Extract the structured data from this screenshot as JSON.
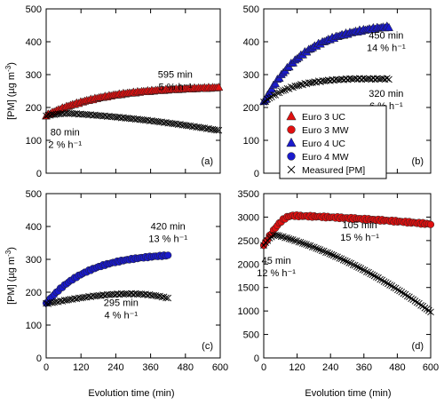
{
  "figure": {
    "x_axis_label": "Evolution time (min)",
    "y_axis_label_main": "[PM] (µg m",
    "y_axis_label_sup": "-3",
    "y_axis_label_end": ")"
  },
  "legend": {
    "entries": [
      {
        "label": "Euro 3 UC",
        "marker": "triangle",
        "color": "#e01010"
      },
      {
        "label": "Euro 3 MW",
        "marker": "circle",
        "color": "#e01010"
      },
      {
        "label": "Euro 4 UC",
        "marker": "triangle",
        "color": "#1a1acc"
      },
      {
        "label": "Euro 4 MW",
        "marker": "circle",
        "color": "#1a1acc"
      },
      {
        "label": "Measured [PM]",
        "marker": "cross",
        "color": "#000000"
      }
    ]
  },
  "chart_data": [
    {
      "type": "scatter",
      "panel_label": "(a)",
      "xlim": [
        0,
        600
      ],
      "ylim": [
        0,
        500
      ],
      "x_ticks": [
        0,
        120,
        240,
        360,
        480,
        600
      ],
      "y_ticks": [
        0,
        100,
        200,
        300,
        400,
        500
      ],
      "show_x_tick_labels": false,
      "show_y_axis_title": true,
      "series": [
        {
          "name": "Euro 3 UC",
          "marker": "triangle",
          "color": "#e01010",
          "x": [
            0,
            595
          ],
          "y": [
            175,
            260
          ],
          "shape": "rise-saturate"
        },
        {
          "name": "Measured [PM]",
          "marker": "cross",
          "color": "#000000",
          "x": [
            0,
            80,
            595
          ],
          "y": [
            175,
            182,
            130
          ],
          "shape": "peak-decay"
        }
      ],
      "annotations": [
        {
          "lines": [
            "595 min",
            "5 % h⁻¹"
          ],
          "x": 445,
          "y": 290
        },
        {
          "lines": [
            "80 min",
            "2 % h⁻¹"
          ],
          "x": 65,
          "y": 115
        }
      ]
    },
    {
      "type": "scatter",
      "panel_label": "(b)",
      "xlim": [
        0,
        600
      ],
      "ylim": [
        0,
        500
      ],
      "x_ticks": [
        0,
        120,
        240,
        360,
        480,
        600
      ],
      "y_ticks": [
        0,
        100,
        200,
        300,
        400,
        500
      ],
      "show_x_tick_labels": false,
      "show_y_axis_title": false,
      "series": [
        {
          "name": "Euro 4 UC",
          "marker": "triangle",
          "color": "#1a1acc",
          "x": [
            0,
            450
          ],
          "y": [
            215,
            445
          ],
          "shape": "rise-saturate"
        },
        {
          "name": "Measured [PM]",
          "marker": "cross",
          "color": "#000000",
          "x": [
            0,
            320,
            450
          ],
          "y": [
            215,
            287,
            287
          ],
          "shape": "rise-plateau"
        }
      ],
      "annotations": [
        {
          "lines": [
            "450 min",
            "14 % h⁻¹"
          ],
          "x": 440,
          "y": 410
        },
        {
          "lines": [
            "320 min",
            "6 % h⁻¹"
          ],
          "x": 440,
          "y": 232
        }
      ]
    },
    {
      "type": "scatter",
      "panel_label": "(c)",
      "xlim": [
        0,
        600
      ],
      "ylim": [
        0,
        500
      ],
      "x_ticks": [
        0,
        120,
        240,
        360,
        480,
        600
      ],
      "y_ticks": [
        0,
        100,
        200,
        300,
        400,
        500
      ],
      "show_x_tick_labels": true,
      "show_y_axis_title": true,
      "series": [
        {
          "name": "Euro 4 MW",
          "marker": "circle",
          "color": "#1a1acc",
          "x": [
            0,
            420
          ],
          "y": [
            165,
            312
          ],
          "shape": "rise-saturate"
        },
        {
          "name": "Measured [PM]",
          "marker": "cross",
          "color": "#000000",
          "x": [
            0,
            295,
            420
          ],
          "y": [
            165,
            195,
            182
          ],
          "shape": "rise-decay"
        }
      ],
      "annotations": [
        {
          "lines": [
            "420 min",
            "13 % h⁻¹"
          ],
          "x": 420,
          "y": 390
        },
        {
          "lines": [
            "295 min",
            "4 % h⁻¹"
          ],
          "x": 258,
          "y": 158
        }
      ]
    },
    {
      "type": "scatter",
      "panel_label": "(d)",
      "xlim": [
        0,
        600
      ],
      "ylim": [
        0,
        3500
      ],
      "x_ticks": [
        0,
        120,
        240,
        360,
        480,
        600
      ],
      "y_ticks": [
        0,
        500,
        1000,
        1500,
        2000,
        2500,
        3000,
        3500
      ],
      "show_x_tick_labels": true,
      "show_y_axis_title": false,
      "series": [
        {
          "name": "Euro 3 MW",
          "marker": "circle",
          "color": "#e01010",
          "x": [
            0,
            105,
            600
          ],
          "y": [
            2400,
            3030,
            2850
          ],
          "shape": "peak-decay"
        },
        {
          "name": "Measured [PM]",
          "marker": "cross",
          "color": "#000000",
          "x": [
            0,
            45,
            600
          ],
          "y": [
            2400,
            2620,
            980
          ],
          "shape": "peak-decay"
        }
      ],
      "annotations": [
        {
          "lines": [
            "105 min",
            "15 % h⁻¹"
          ],
          "x": 345,
          "y": 2760
        },
        {
          "lines": [
            "45 min",
            "12 % h⁻¹"
          ],
          "x": 45,
          "y": 2010
        }
      ]
    }
  ]
}
